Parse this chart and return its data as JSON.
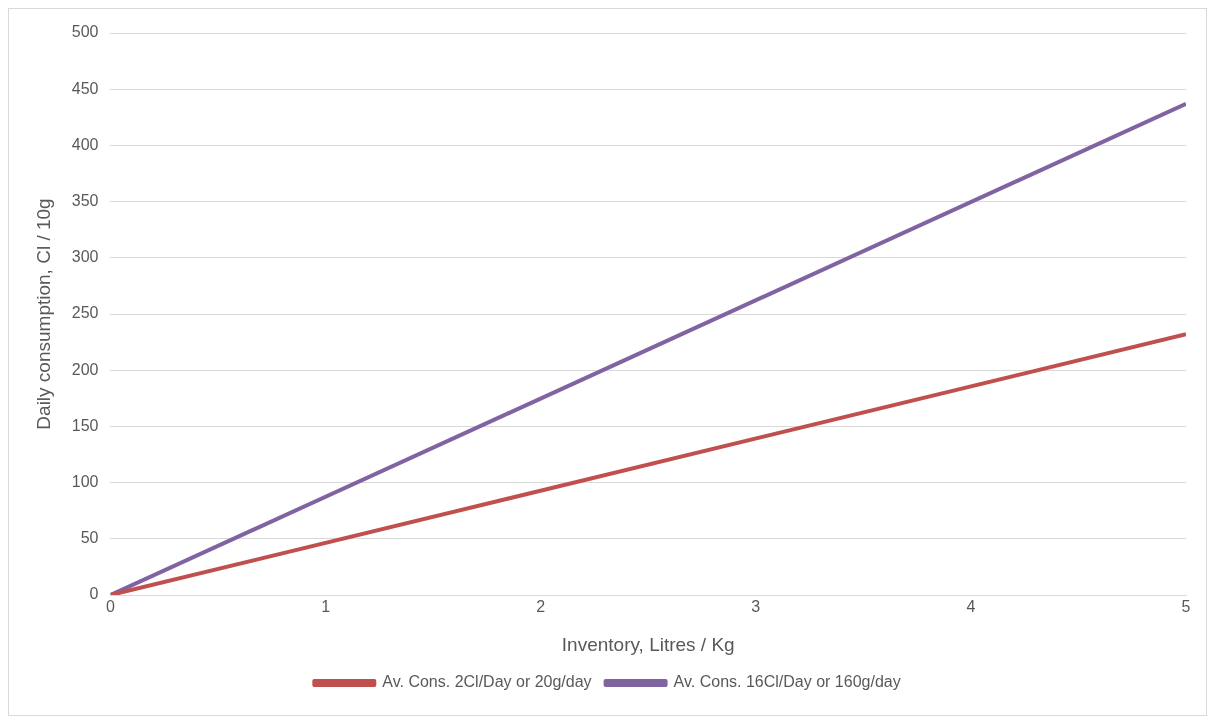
{
  "chart_data": {
    "type": "line",
    "xlabel": "Inventory, Litres / Kg",
    "ylabel": "Daily consumption, Cl / 10g",
    "x": [
      0,
      5
    ],
    "series": [
      {
        "name": "Av. Cons. 2Cl/Day or 20g/day",
        "color": "#c0504d",
        "values": [
          0,
          232
        ]
      },
      {
        "name": "Av. Cons. 16Cl/Day or 160g/day",
        "color": "#8064a2",
        "values": [
          0,
          437
        ]
      }
    ],
    "xlim": [
      0,
      5
    ],
    "xticks": [
      0,
      1,
      2,
      3,
      4,
      5
    ],
    "ylim": [
      0,
      500
    ],
    "yticks": [
      0,
      50,
      100,
      150,
      200,
      250,
      300,
      350,
      400,
      450,
      500
    ],
    "grid": "y",
    "legend": "bottom",
    "marker": "none",
    "line_style": "solid"
  }
}
